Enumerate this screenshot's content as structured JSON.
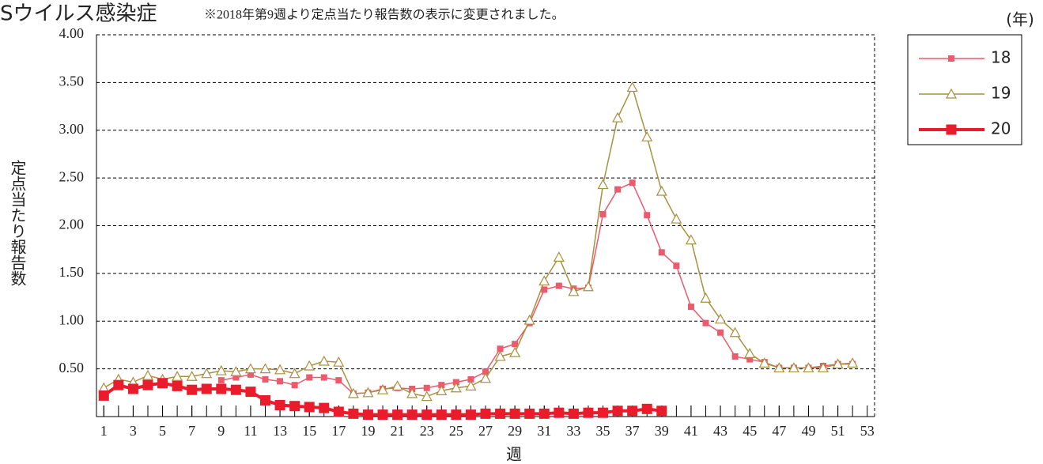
{
  "chart_data": {
    "type": "line",
    "title": "Sウイルス感染症",
    "subtitle": "※2018年第9週より定点当たり報告数の表示に変更されました。",
    "legend_title": "(年)",
    "y_label": "定点当たり報告数",
    "x_label": "週",
    "x": [
      1,
      2,
      3,
      4,
      5,
      6,
      7,
      8,
      9,
      10,
      11,
      12,
      13,
      14,
      15,
      16,
      17,
      18,
      19,
      20,
      21,
      22,
      23,
      24,
      25,
      26,
      27,
      28,
      29,
      30,
      31,
      32,
      33,
      34,
      35,
      36,
      37,
      38,
      39,
      40,
      41,
      42,
      43,
      44,
      45,
      46,
      47,
      48,
      49,
      50,
      51,
      52
    ],
    "series": [
      {
        "name": "18",
        "color": "#ec5a6e",
        "marker": "square",
        "values": [
          null,
          null,
          null,
          null,
          null,
          null,
          null,
          null,
          0.38,
          0.41,
          0.44,
          0.39,
          0.37,
          0.33,
          0.41,
          0.41,
          0.38,
          0.24,
          0.25,
          0.29,
          0.3,
          0.29,
          0.3,
          0.33,
          0.36,
          0.39,
          0.47,
          0.71,
          0.76,
          0.98,
          1.33,
          1.37,
          1.34,
          1.35,
          2.12,
          2.38,
          2.45,
          2.11,
          1.72,
          1.58,
          1.15,
          0.98,
          0.88,
          0.63,
          0.6,
          0.57,
          0.51,
          0.51,
          0.51,
          0.53,
          0.55,
          0.55
        ]
      },
      {
        "name": "19",
        "color": "#a8903e",
        "marker": "triangle",
        "values": [
          0.3,
          0.39,
          0.36,
          0.43,
          0.39,
          0.42,
          0.42,
          0.45,
          0.48,
          0.47,
          0.5,
          0.5,
          0.49,
          0.45,
          0.53,
          0.58,
          0.57,
          0.24,
          0.25,
          0.28,
          0.32,
          0.24,
          0.21,
          0.27,
          0.3,
          0.32,
          0.4,
          0.63,
          0.67,
          1.01,
          1.42,
          1.67,
          1.31,
          1.36,
          2.43,
          3.13,
          3.45,
          2.93,
          2.36,
          2.07,
          1.85,
          1.24,
          1.02,
          0.88,
          0.66,
          0.56,
          0.51,
          0.51,
          0.51,
          0.51,
          0.55,
          0.56
        ]
      },
      {
        "name": "20",
        "color": "#ea1c2c",
        "marker": "bigsquare",
        "values": [
          0.22,
          0.33,
          0.29,
          0.33,
          0.35,
          0.32,
          0.28,
          0.29,
          0.29,
          0.28,
          0.26,
          0.17,
          0.12,
          0.11,
          0.1,
          0.09,
          0.05,
          0.03,
          0.02,
          0.02,
          0.02,
          0.02,
          0.02,
          0.02,
          0.02,
          0.02,
          0.03,
          0.03,
          0.03,
          0.03,
          0.03,
          0.04,
          0.03,
          0.04,
          0.04,
          0.06,
          0.06,
          0.08,
          0.06,
          null,
          null,
          null,
          null,
          null,
          null,
          null,
          null,
          null,
          null,
          null,
          null,
          null
        ]
      }
    ],
    "xlim": [
      0.5,
      53.5
    ],
    "xticks": [
      1,
      3,
      5,
      7,
      9,
      11,
      13,
      15,
      17,
      19,
      21,
      23,
      25,
      27,
      29,
      31,
      33,
      35,
      37,
      39,
      41,
      43,
      45,
      47,
      49,
      51,
      53
    ],
    "ylim": [
      0,
      4
    ],
    "yticks": [
      {
        "value": 0.5,
        "label": "0.50"
      },
      {
        "value": 1,
        "label": "1.00"
      },
      {
        "value": 1.5,
        "label": "1.50"
      },
      {
        "value": 2,
        "label": "2.00"
      },
      {
        "value": 2.5,
        "label": "2.50"
      },
      {
        "value": 3,
        "label": "3.00"
      },
      {
        "value": 3.5,
        "label": "3.50"
      },
      {
        "value": 4,
        "label": "4.00"
      }
    ],
    "grid": true,
    "legend": "right"
  }
}
